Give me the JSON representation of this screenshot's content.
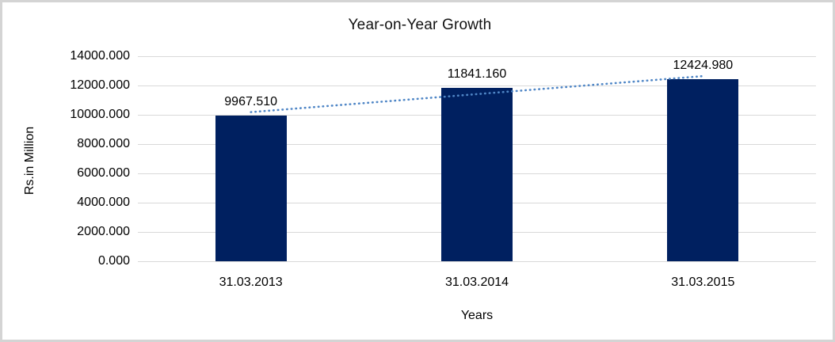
{
  "chart_data": {
    "type": "bar",
    "title": "Year-on-Year Growth",
    "xlabel": "Years",
    "ylabel": "Rs.in Million",
    "categories": [
      "31.03.2013",
      "31.03.2014",
      "31.03.2015"
    ],
    "values": [
      9967.51,
      11841.16,
      12424.98
    ],
    "data_labels": [
      "9967.510",
      "11841.160",
      "12424.980"
    ],
    "y_tick_labels": [
      "14000.000",
      "12000.000",
      "10000.000",
      "8000.000",
      "6000.000",
      "4000.000",
      "2000.000",
      "0.000"
    ],
    "ylim": [
      0,
      14000
    ],
    "grid": true,
    "legend": "none",
    "trendline": "linear dotted",
    "colors": {
      "bar": "#002060",
      "trendline": "#4f86c6",
      "gridline": "#d9d9d9",
      "text": "#000000",
      "frame_border": "#d4d4d4"
    }
  }
}
